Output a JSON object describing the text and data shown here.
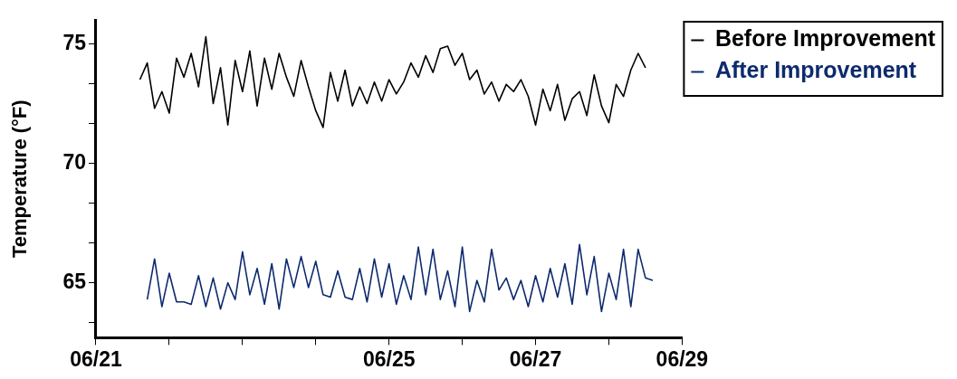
{
  "chart_data": {
    "type": "line",
    "ylabel": "Temperature (°F)",
    "legend": "top right",
    "grid": false,
    "marker": "none",
    "line_style": "solid",
    "xlim": [
      "--06-21",
      "--06-29"
    ],
    "xticks": [
      {
        "value": "--06-21",
        "label": "06/21"
      },
      {
        "value": "--06-22",
        "label": null
      },
      {
        "value": "--06-23",
        "label": null
      },
      {
        "value": "--06-24",
        "label": null
      },
      {
        "value": "--06-25",
        "label": "06/25"
      },
      {
        "value": "--06-26",
        "label": null
      },
      {
        "value": "--06-27",
        "label": "06/27"
      },
      {
        "value": "--06-28",
        "label": null
      },
      {
        "value": "--06-29",
        "label": "06/29"
      }
    ],
    "ylim": [
      62.7,
      76
    ],
    "yticks": [
      {
        "value": 63.33,
        "label": null
      },
      65,
      {
        "value": 66.67,
        "label": null
      },
      {
        "value": 68.33,
        "label": null
      },
      70,
      {
        "value": 71.67,
        "label": null
      },
      {
        "value": 73.33,
        "label": null
      },
      75
    ],
    "series": [
      {
        "name": "Before Improvement",
        "color": "#000000",
        "x": [
          "--06-21T14:24",
          "--06-21T16:48",
          "--06-21T19:12",
          "--06-21T21:36",
          "--06-22T00:00",
          "--06-22T02:24",
          "--06-22T04:48",
          "--06-22T07:12",
          "--06-22T09:36",
          "--06-22T12:00",
          "--06-22T14:24",
          "--06-22T16:48",
          "--06-22T19:12",
          "--06-22T21:36",
          "--06-23T00:00",
          "--06-23T02:24",
          "--06-23T04:48",
          "--06-23T07:12",
          "--06-23T09:36",
          "--06-23T12:00",
          "--06-23T14:24",
          "--06-23T16:48",
          "--06-23T19:12",
          "--06-23T21:36",
          "--06-24T00:00",
          "--06-24T02:24",
          "--06-24T04:48",
          "--06-24T07:12",
          "--06-24T09:36",
          "--06-24T12:00",
          "--06-24T14:24",
          "--06-24T16:48",
          "--06-24T19:12",
          "--06-24T21:36",
          "--06-25T00:00",
          "--06-25T02:24",
          "--06-25T04:48",
          "--06-25T07:12",
          "--06-25T09:36",
          "--06-25T12:00",
          "--06-25T14:24",
          "--06-25T16:48",
          "--06-25T19:12",
          "--06-25T21:36",
          "--06-26T00:00",
          "--06-26T02:24",
          "--06-26T04:48",
          "--06-26T07:12",
          "--06-26T09:36",
          "--06-26T12:00",
          "--06-26T14:24",
          "--06-26T16:48",
          "--06-26T19:12",
          "--06-26T21:36",
          "--06-27T00:00",
          "--06-27T02:24",
          "--06-27T04:48",
          "--06-27T07:12",
          "--06-27T09:36",
          "--06-27T12:00",
          "--06-27T14:24",
          "--06-27T16:48",
          "--06-27T19:12",
          "--06-27T21:36",
          "--06-28T00:00",
          "--06-28T02:24",
          "--06-28T04:48",
          "--06-28T07:12",
          "--06-28T09:36",
          "--06-28T12:00"
        ],
        "values": [
          73.5,
          74.2,
          72.3,
          73.0,
          72.1,
          74.4,
          73.6,
          74.6,
          73.2,
          75.3,
          72.5,
          74.0,
          71.6,
          74.3,
          73.0,
          74.7,
          72.4,
          74.4,
          73.1,
          74.6,
          73.6,
          72.8,
          74.3,
          73.2,
          72.2,
          71.5,
          73.8,
          72.6,
          73.9,
          72.4,
          73.2,
          72.5,
          73.4,
          72.6,
          73.5,
          72.9,
          73.4,
          74.2,
          73.6,
          74.5,
          73.8,
          74.8,
          74.9,
          74.1,
          74.6,
          73.5,
          73.9,
          72.9,
          73.4,
          72.6,
          73.3,
          73.0,
          73.5,
          72.8,
          71.6,
          73.1,
          72.2,
          73.3,
          71.8,
          72.7,
          73.0,
          72.0,
          73.7,
          72.4,
          71.7,
          73.3,
          72.8,
          73.9,
          74.6,
          74.0
        ]
      },
      {
        "name": "After Improvement",
        "color": "#0d2a6e",
        "x": [
          "--06-21T16:48",
          "--06-21T19:12",
          "--06-21T21:36",
          "--06-22T00:00",
          "--06-22T02:24",
          "--06-22T04:48",
          "--06-22T07:12",
          "--06-22T09:36",
          "--06-22T12:00",
          "--06-22T14:24",
          "--06-22T16:48",
          "--06-22T19:12",
          "--06-22T21:36",
          "--06-23T00:00",
          "--06-23T02:24",
          "--06-23T04:48",
          "--06-23T07:12",
          "--06-23T09:36",
          "--06-23T12:00",
          "--06-23T14:24",
          "--06-23T16:48",
          "--06-23T19:12",
          "--06-23T21:36",
          "--06-24T00:00",
          "--06-24T02:24",
          "--06-24T04:48",
          "--06-24T07:12",
          "--06-24T09:36",
          "--06-24T12:00",
          "--06-24T14:24",
          "--06-24T16:48",
          "--06-24T19:12",
          "--06-24T21:36",
          "--06-25T00:00",
          "--06-25T02:24",
          "--06-25T04:48",
          "--06-25T07:12",
          "--06-25T09:36",
          "--06-25T12:00",
          "--06-25T14:24",
          "--06-25T16:48",
          "--06-25T19:12",
          "--06-25T21:36",
          "--06-26T00:00",
          "--06-26T02:24",
          "--06-26T04:48",
          "--06-26T07:12",
          "--06-26T09:36",
          "--06-26T12:00",
          "--06-26T14:24",
          "--06-26T16:48",
          "--06-26T19:12",
          "--06-26T21:36",
          "--06-27T00:00",
          "--06-27T02:24",
          "--06-27T04:48",
          "--06-27T07:12",
          "--06-27T09:36",
          "--06-27T12:00",
          "--06-27T14:24",
          "--06-27T16:48",
          "--06-27T19:12",
          "--06-27T21:36",
          "--06-28T00:00",
          "--06-28T02:24",
          "--06-28T04:48",
          "--06-28T07:12",
          "--06-28T09:36",
          "--06-28T12:00",
          "--06-28T14:24"
        ],
        "values": [
          64.3,
          66.0,
          64.0,
          65.4,
          64.2,
          64.2,
          64.1,
          65.3,
          64.0,
          65.2,
          63.9,
          65.0,
          64.3,
          66.3,
          64.5,
          65.6,
          64.1,
          65.8,
          63.9,
          66.0,
          64.8,
          66.1,
          64.8,
          65.9,
          64.5,
          64.4,
          65.5,
          64.4,
          64.3,
          65.6,
          64.2,
          66.0,
          64.4,
          65.8,
          64.1,
          65.3,
          64.3,
          66.5,
          64.5,
          66.4,
          64.3,
          65.5,
          64.0,
          66.5,
          63.8,
          65.1,
          64.2,
          66.4,
          64.7,
          65.2,
          64.3,
          65.1,
          64.0,
          65.3,
          64.2,
          65.6,
          64.4,
          65.8,
          64.1,
          66.6,
          64.5,
          66.1,
          63.8,
          65.4,
          64.3,
          66.4,
          64.0,
          66.4,
          65.2,
          65.1
        ]
      }
    ]
  }
}
